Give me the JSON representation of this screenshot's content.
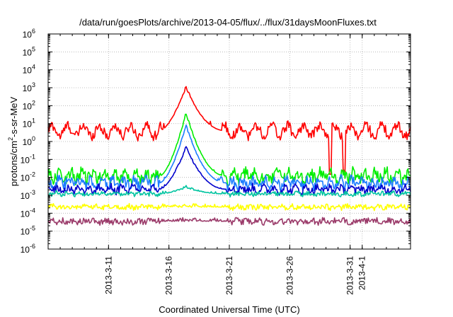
{
  "chart_data": {
    "type": "line",
    "title": "/data/run/goesPlots/archive/2013-04-05/flux/../flux/31daysMoonFluxes.txt",
    "xlabel": "Coordinated Universal Time (UTC)",
    "ylabel": {
      "base": "protons/cm",
      "sup": "2",
      "rest": "-s-sr-MeV"
    },
    "y_scale": "log",
    "ylim": [
      1e-06,
      1000000.0
    ],
    "xlim": [
      "2013-03-06",
      "2013-04-05"
    ],
    "grid": true,
    "y_ticks": [
      {
        "value": 1e-06,
        "exp": "-6"
      },
      {
        "value": 1e-05,
        "exp": "-5"
      },
      {
        "value": 0.0001,
        "exp": "-4"
      },
      {
        "value": 0.001,
        "exp": "-3"
      },
      {
        "value": 0.01,
        "exp": "-2"
      },
      {
        "value": 0.1,
        "exp": "-1"
      },
      {
        "value": 1,
        "exp": "0"
      },
      {
        "value": 10.0,
        "exp": "1"
      },
      {
        "value": 100.0,
        "exp": "2"
      },
      {
        "value": 1000.0,
        "exp": "3"
      },
      {
        "value": 10000.0,
        "exp": "4"
      },
      {
        "value": 100000.0,
        "exp": "5"
      },
      {
        "value": 1000000.0,
        "exp": "6"
      }
    ],
    "x_ticks": [
      {
        "date": "2013-03-11",
        "label": "2013-3-11"
      },
      {
        "date": "2013-03-16",
        "label": "2013-3-16"
      },
      {
        "date": "2013-03-21",
        "label": "2013-3-21"
      },
      {
        "date": "2013-03-26",
        "label": "2013-3-26"
      },
      {
        "date": "2013-03-31",
        "label": "2013-3-31"
      },
      {
        "date": "2013-04-01",
        "label": "2013-4-1"
      }
    ],
    "series": [
      {
        "color": "#ff0000",
        "baseline": 4.0,
        "noise_dex": 0.28,
        "period": 1.3,
        "osc_dex": 0.3,
        "peak": 1100,
        "dips": [
          {
            "date": "2013-03-29T09:00",
            "value": 0.015
          },
          {
            "date": "2013-03-30T12:00",
            "value": 0.02
          }
        ]
      },
      {
        "color": "#00ee00",
        "baseline": 0.012,
        "noise_dex": 0.35,
        "period": 0.9,
        "osc_dex": 0.2,
        "peak": 40
      },
      {
        "color": "#1c7cff",
        "baseline": 0.005,
        "noise_dex": 0.3,
        "period": 0.9,
        "osc_dex": 0.15,
        "peak": 8
      },
      {
        "color": "#0000cc",
        "baseline": 0.0022,
        "noise_dex": 0.22,
        "period": 0.9,
        "osc_dex": 0.12,
        "peak": 0.5
      },
      {
        "color": "#00c4a0",
        "baseline": 0.0012,
        "noise_dex": 0.12,
        "period": 1.0,
        "osc_dex": 0.05,
        "peak": 0.003
      },
      {
        "color": "#ffff00",
        "baseline": 0.00022,
        "noise_dex": 0.15,
        "period": 0.9,
        "osc_dex": 0.05,
        "peak": 0.00025
      },
      {
        "color": "#9b3b6a",
        "baseline": 3.5e-05,
        "noise_dex": 0.17,
        "period": 0.9,
        "osc_dex": 0.05,
        "peak": 4e-05
      }
    ],
    "event": {
      "start": "2013-03-15T06:00",
      "peak": "2013-03-17T10:00",
      "end": "2013-03-20T18:00"
    }
  }
}
